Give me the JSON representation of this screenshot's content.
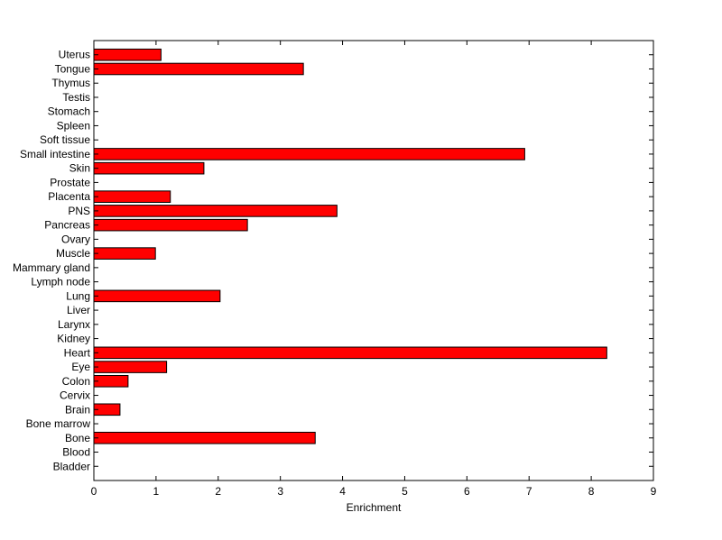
{
  "chart_data": {
    "type": "bar",
    "orientation": "horizontal",
    "title": "",
    "xlabel": "Enrichment",
    "ylabel": "",
    "xlim": [
      0,
      9
    ],
    "xticks": [
      "0",
      "1",
      "2",
      "3",
      "4",
      "5",
      "6",
      "7",
      "8",
      "9"
    ],
    "grid": false,
    "bar_color": "#ff0000",
    "bar_edge_color": "#000000",
    "categories": [
      "Bladder",
      "Blood",
      "Bone",
      "Bone marrow",
      "Brain",
      "Cervix",
      "Colon",
      "Eye",
      "Heart",
      "Kidney",
      "Larynx",
      "Liver",
      "Lung",
      "Lymph node",
      "Mammary gland",
      "Muscle",
      "Ovary",
      "Pancreas",
      "PNS",
      "Placenta",
      "Prostate",
      "Skin",
      "Small intestine",
      "Soft tissue",
      "Spleen",
      "Stomach",
      "Testis",
      "Thymus",
      "Tongue",
      "Uterus"
    ],
    "values": [
      0,
      0,
      3.56,
      0,
      0.42,
      0,
      0.55,
      1.17,
      8.25,
      0,
      0,
      0,
      2.03,
      0,
      0,
      0.99,
      0,
      2.47,
      3.91,
      1.23,
      0,
      1.77,
      6.93,
      0,
      0,
      0,
      0,
      0,
      3.37,
      1.08
    ]
  }
}
